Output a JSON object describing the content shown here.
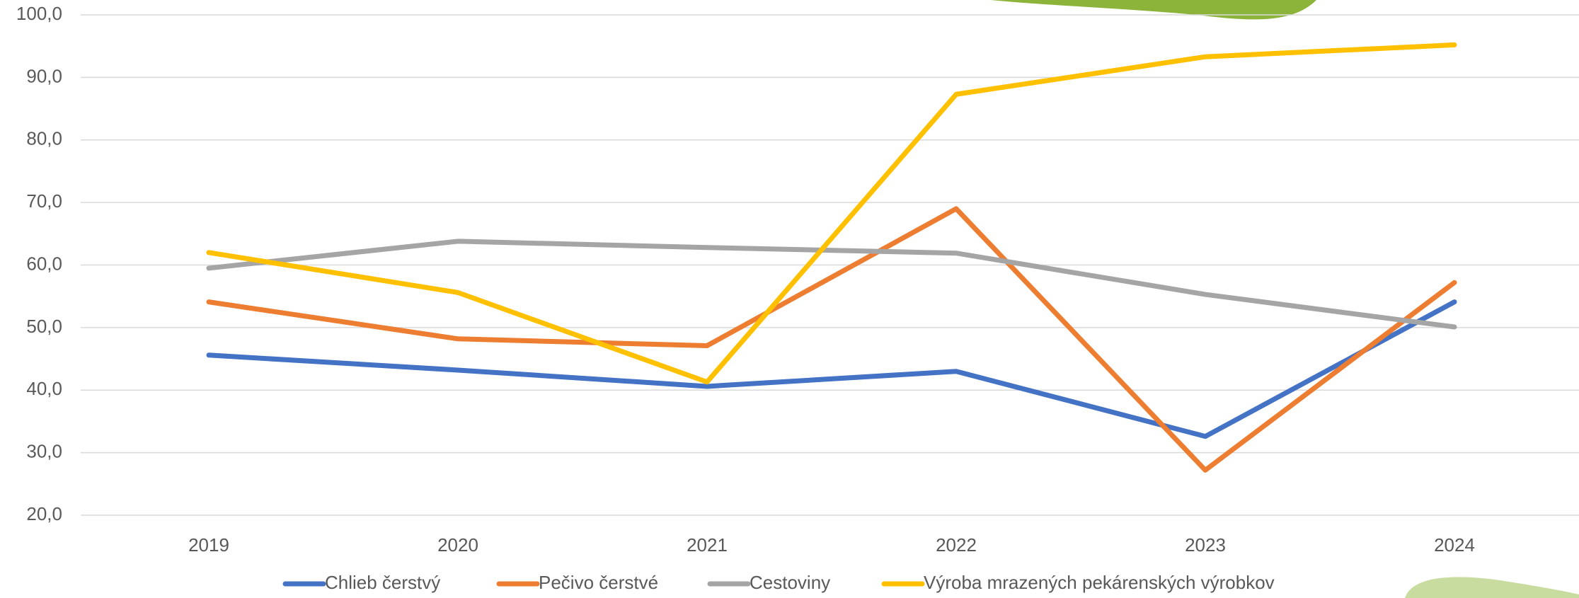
{
  "chart_data": {
    "type": "line",
    "categories": [
      "2019",
      "2020",
      "2021",
      "2022",
      "2023",
      "2024"
    ],
    "series": [
      {
        "name": "Chlieb čerstvý",
        "color": "#4472c4",
        "values": [
          45.6,
          43.2,
          40.6,
          43.0,
          32.6,
          54.1
        ]
      },
      {
        "name": "Pečivo čerstvé",
        "color": "#ed7d31",
        "values": [
          54.1,
          48.2,
          47.1,
          69.0,
          27.2,
          57.2
        ]
      },
      {
        "name": "Cestoviny",
        "color": "#a5a5a5",
        "values": [
          59.5,
          63.8,
          62.8,
          61.9,
          55.3,
          50.1
        ]
      },
      {
        "name": "Výroba mrazených pekárenských výrobkov",
        "color": "#ffc000",
        "values": [
          62.0,
          55.6,
          41.3,
          87.3,
          93.3,
          95.2
        ]
      }
    ],
    "ylim": [
      20,
      100
    ],
    "yticks": [
      {
        "value": 20,
        "label": "20,0"
      },
      {
        "value": 30,
        "label": "30,0"
      },
      {
        "value": 40,
        "label": "40,0"
      },
      {
        "value": 50,
        "label": "50,0"
      },
      {
        "value": 60,
        "label": "60,0"
      },
      {
        "value": 70,
        "label": "70,0"
      },
      {
        "value": 80,
        "label": "80,0"
      },
      {
        "value": 90,
        "label": "90,0"
      },
      {
        "value": 100,
        "label": "100,0"
      }
    ],
    "grid": true,
    "legend": "bottom"
  }
}
